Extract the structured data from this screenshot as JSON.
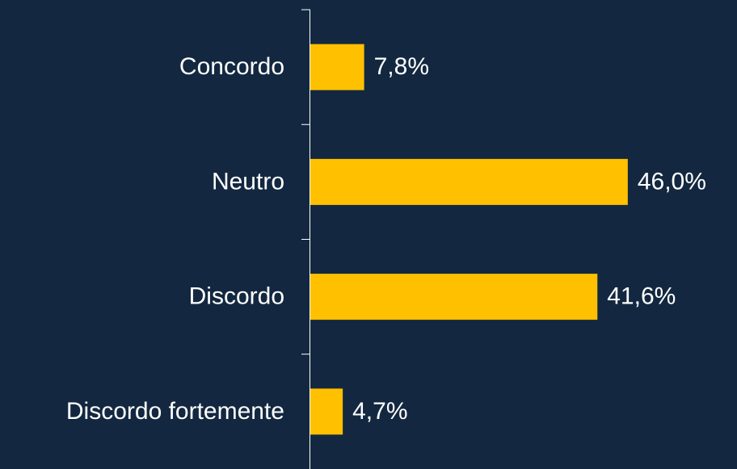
{
  "chart_data": {
    "type": "barh",
    "categories": [
      "Concordo",
      "Neutro",
      "Discordo",
      "Discordo fortemente"
    ],
    "values": [
      7.8,
      46.0,
      41.6,
      4.7
    ],
    "value_labels": [
      "7,8%",
      "46,0%",
      "41,6%",
      "4,7%"
    ],
    "color": "#ffc000"
  }
}
